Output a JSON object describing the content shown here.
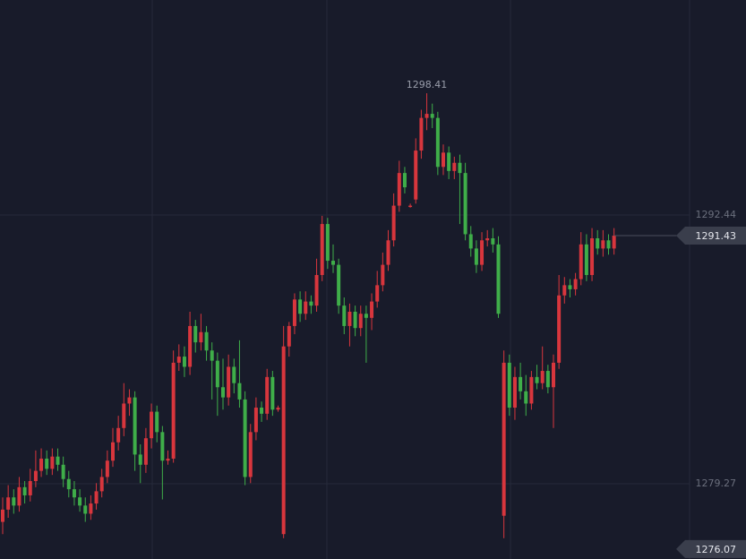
{
  "chart_data": {
    "type": "candlestick",
    "up_color": "#d8363d",
    "down_color": "#3fae49",
    "ylim": [
      1275.58,
      1302.98
    ],
    "yticks": [
      1292.44,
      1279.27
    ],
    "grid": true,
    "low_marker": 1276.07,
    "ohlc": [
      [
        1277.4,
        1278.6,
        1276.8,
        1278.0
      ],
      [
        1278.0,
        1279.2,
        1277.6,
        1278.6
      ],
      [
        1278.6,
        1279.0,
        1277.8,
        1278.2
      ],
      [
        1278.2,
        1279.6,
        1277.9,
        1279.1
      ],
      [
        1279.1,
        1279.4,
        1278.3,
        1278.7
      ],
      [
        1278.7,
        1280.0,
        1278.4,
        1279.4
      ],
      [
        1279.4,
        1280.9,
        1279.1,
        1279.9
      ],
      [
        1279.9,
        1281.0,
        1279.6,
        1280.5
      ],
      [
        1280.5,
        1280.9,
        1279.7,
        1280.0
      ],
      [
        1280.0,
        1281.0,
        1279.7,
        1280.6
      ],
      [
        1280.6,
        1281.0,
        1279.9,
        1280.2
      ],
      [
        1280.2,
        1280.6,
        1279.1,
        1279.5
      ],
      [
        1279.5,
        1279.9,
        1278.6,
        1279.0
      ],
      [
        1279.0,
        1279.4,
        1278.2,
        1278.6
      ],
      [
        1278.6,
        1279.0,
        1277.9,
        1278.2
      ],
      [
        1278.2,
        1278.6,
        1277.4,
        1277.8
      ],
      [
        1277.8,
        1278.7,
        1277.5,
        1278.3
      ],
      [
        1278.3,
        1279.3,
        1278.0,
        1278.9
      ],
      [
        1278.9,
        1280.0,
        1278.6,
        1279.6
      ],
      [
        1279.6,
        1280.9,
        1279.3,
        1280.4
      ],
      [
        1280.4,
        1282.0,
        1280.1,
        1281.3
      ],
      [
        1281.3,
        1282.6,
        1280.9,
        1282.0
      ],
      [
        1282.0,
        1284.2,
        1281.6,
        1283.2
      ],
      [
        1283.2,
        1283.9,
        1282.6,
        1283.5
      ],
      [
        1283.5,
        1283.8,
        1279.9,
        1280.7
      ],
      [
        1280.7,
        1281.2,
        1279.3,
        1280.2
      ],
      [
        1280.2,
        1282.0,
        1279.8,
        1281.5
      ],
      [
        1281.5,
        1283.2,
        1281.0,
        1282.8
      ],
      [
        1282.8,
        1283.1,
        1281.3,
        1281.8
      ],
      [
        1281.8,
        1282.1,
        1278.5,
        1280.4
      ],
      [
        1280.4,
        1280.9,
        1280.2,
        1280.5
      ],
      [
        1280.5,
        1285.8,
        1280.3,
        1285.2
      ],
      [
        1285.2,
        1286.1,
        1284.8,
        1285.5
      ],
      [
        1285.5,
        1286.0,
        1284.5,
        1285.0
      ],
      [
        1285.0,
        1287.7,
        1284.6,
        1287.0
      ],
      [
        1287.0,
        1287.3,
        1285.7,
        1286.2
      ],
      [
        1286.2,
        1287.6,
        1285.8,
        1286.7
      ],
      [
        1286.7,
        1287.0,
        1285.3,
        1285.8
      ],
      [
        1285.8,
        1286.2,
        1283.4,
        1285.3
      ],
      [
        1285.3,
        1285.7,
        1282.6,
        1284.0
      ],
      [
        1284.0,
        1285.4,
        1282.9,
        1283.5
      ],
      [
        1283.5,
        1285.6,
        1283.1,
        1285.0
      ],
      [
        1285.0,
        1285.4,
        1283.7,
        1284.2
      ],
      [
        1284.2,
        1286.3,
        1283.0,
        1283.4
      ],
      [
        1283.4,
        1283.8,
        1279.2,
        1279.6
      ],
      [
        1279.6,
        1282.2,
        1279.3,
        1281.8
      ],
      [
        1281.8,
        1283.5,
        1281.4,
        1283.0
      ],
      [
        1283.0,
        1283.3,
        1282.3,
        1282.7
      ],
      [
        1282.7,
        1284.9,
        1282.4,
        1284.5
      ],
      [
        1284.5,
        1284.8,
        1282.6,
        1282.9
      ],
      [
        1282.9,
        1283.1,
        1282.8,
        1283.0
      ],
      [
        1276.8,
        1287.0,
        1276.6,
        1286.0
      ],
      [
        1286.0,
        1287.2,
        1285.5,
        1287.0
      ],
      [
        1287.0,
        1288.6,
        1286.6,
        1288.3
      ],
      [
        1288.3,
        1288.7,
        1287.2,
        1287.6
      ],
      [
        1287.6,
        1288.7,
        1287.3,
        1288.2
      ],
      [
        1288.2,
        1288.5,
        1287.6,
        1288.0
      ],
      [
        1288.0,
        1290.3,
        1287.7,
        1289.5
      ],
      [
        1289.5,
        1292.4,
        1289.2,
        1292.0
      ],
      [
        1292.0,
        1292.3,
        1289.8,
        1290.2
      ],
      [
        1290.2,
        1291.0,
        1289.6,
        1290.0
      ],
      [
        1290.0,
        1290.3,
        1287.6,
        1288.0
      ],
      [
        1288.0,
        1288.4,
        1286.6,
        1287.0
      ],
      [
        1287.0,
        1288.1,
        1286.0,
        1287.7
      ],
      [
        1287.7,
        1288.0,
        1286.5,
        1286.9
      ],
      [
        1286.9,
        1288.0,
        1286.5,
        1287.6
      ],
      [
        1287.6,
        1288.0,
        1285.2,
        1287.4
      ],
      [
        1287.4,
        1288.6,
        1286.8,
        1288.2
      ],
      [
        1288.2,
        1289.7,
        1287.9,
        1289.0
      ],
      [
        1289.0,
        1290.6,
        1288.7,
        1290.0
      ],
      [
        1290.0,
        1291.7,
        1289.7,
        1291.2
      ],
      [
        1291.2,
        1293.5,
        1290.9,
        1292.9
      ],
      [
        1292.9,
        1295.1,
        1292.6,
        1294.5
      ],
      [
        1294.5,
        1294.8,
        1293.5,
        1293.8
      ],
      [
        1292.9,
        1293.0,
        1292.8,
        1292.9
      ],
      [
        1293.2,
        1296.2,
        1293.0,
        1295.6
      ],
      [
        1295.6,
        1297.6,
        1295.2,
        1297.2
      ],
      [
        1297.2,
        1298.41,
        1296.6,
        1297.4
      ],
      [
        1297.4,
        1297.9,
        1296.7,
        1297.2
      ],
      [
        1297.2,
        1297.5,
        1294.4,
        1294.8
      ],
      [
        1294.8,
        1295.9,
        1294.4,
        1295.5
      ],
      [
        1295.5,
        1295.8,
        1294.2,
        1294.6
      ],
      [
        1294.6,
        1295.3,
        1294.2,
        1295.0
      ],
      [
        1295.0,
        1295.4,
        1292.0,
        1294.5
      ],
      [
        1294.5,
        1295.0,
        1291.2,
        1291.5
      ],
      [
        1291.5,
        1291.9,
        1290.4,
        1290.8
      ],
      [
        1290.8,
        1291.2,
        1289.6,
        1290.0
      ],
      [
        1290.0,
        1291.6,
        1289.7,
        1291.2
      ],
      [
        1291.2,
        1291.7,
        1290.9,
        1291.3
      ],
      [
        1291.3,
        1291.8,
        1290.6,
        1291.0
      ],
      [
        1291.0,
        1291.4,
        1287.4,
        1287.6
      ],
      [
        1277.7,
        1285.8,
        1276.6,
        1285.2
      ],
      [
        1285.2,
        1285.6,
        1282.6,
        1283.0
      ],
      [
        1283.0,
        1285.0,
        1282.4,
        1284.5
      ],
      [
        1284.5,
        1285.2,
        1283.4,
        1283.8
      ],
      [
        1283.8,
        1284.6,
        1282.6,
        1283.2
      ],
      [
        1283.2,
        1284.8,
        1282.9,
        1284.5
      ],
      [
        1284.5,
        1285.1,
        1283.9,
        1284.2
      ],
      [
        1284.2,
        1286.0,
        1283.9,
        1284.8
      ],
      [
        1284.8,
        1285.1,
        1283.7,
        1284.0
      ],
      [
        1284.0,
        1285.6,
        1282.0,
        1285.2
      ],
      [
        1285.2,
        1289.5,
        1284.9,
        1288.5
      ],
      [
        1288.5,
        1289.4,
        1288.1,
        1289.0
      ],
      [
        1289.0,
        1289.3,
        1288.4,
        1288.8
      ],
      [
        1288.8,
        1289.6,
        1288.5,
        1289.3
      ],
      [
        1289.3,
        1291.6,
        1289.0,
        1291.0
      ],
      [
        1291.0,
        1291.5,
        1289.2,
        1289.5
      ],
      [
        1289.5,
        1291.8,
        1289.2,
        1291.3
      ],
      [
        1291.3,
        1291.7,
        1290.5,
        1290.8
      ],
      [
        1290.8,
        1291.7,
        1290.4,
        1291.2
      ],
      [
        1291.2,
        1291.5,
        1290.5,
        1290.8
      ],
      [
        1290.8,
        1291.8,
        1290.5,
        1291.43
      ]
    ]
  }
}
